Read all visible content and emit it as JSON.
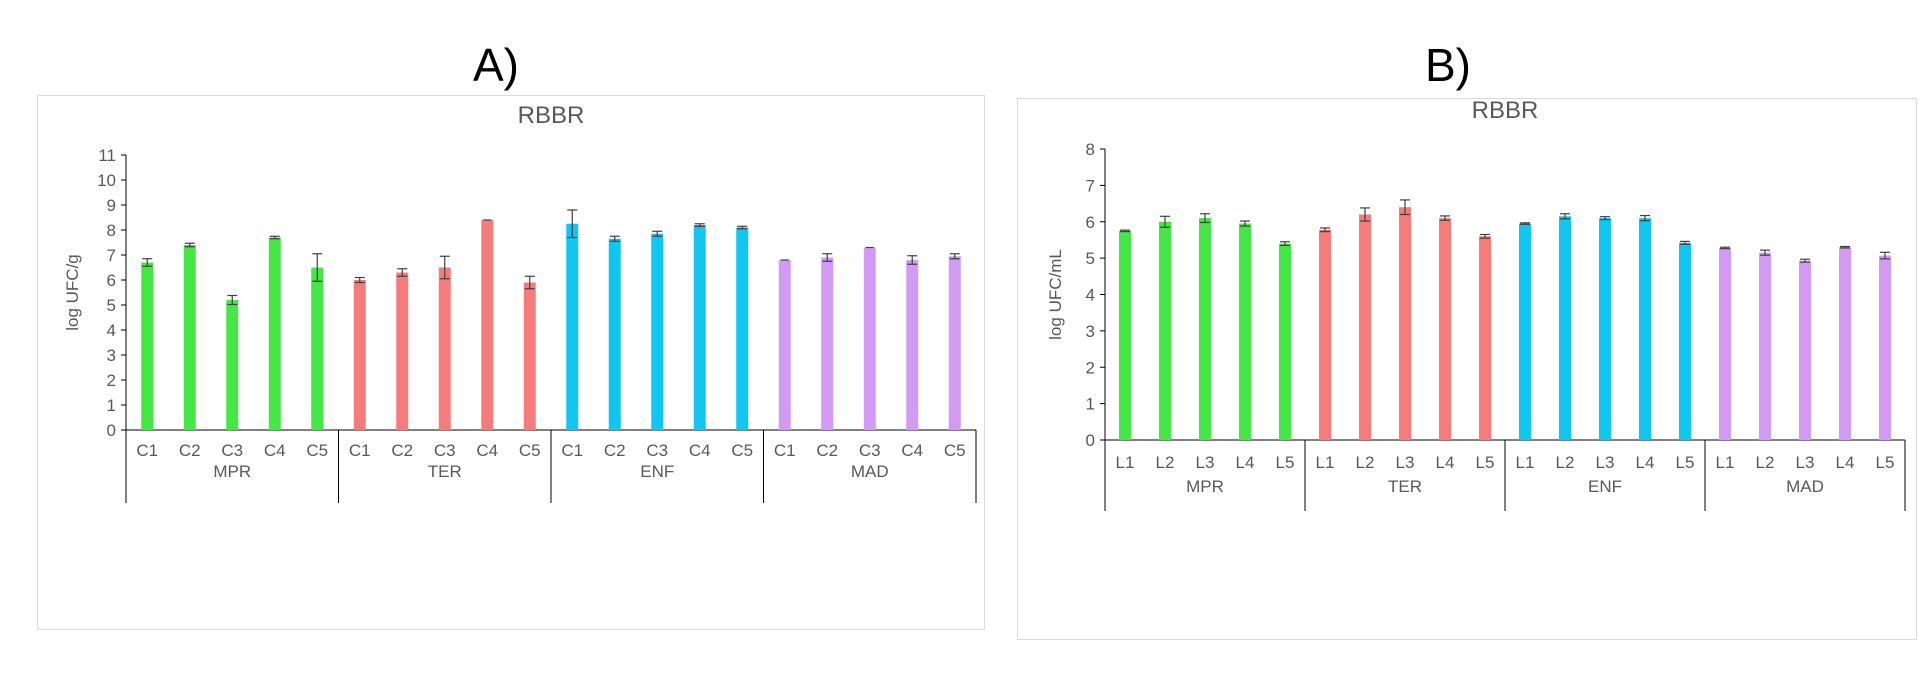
{
  "panels": {
    "a_label": "A)",
    "b_label": "B)"
  },
  "colors": {
    "MPR": "#44e745",
    "TER": "#f67b7b",
    "ENF": "#12c6f2",
    "MAD": "#d29af2",
    "error_bar": "#404040",
    "axis": "#000000",
    "text": "#595959"
  },
  "chart_data": [
    {
      "type": "bar",
      "title": "RBBR",
      "ylabel": "log UFC/g",
      "xlabel": "",
      "ylim": [
        0,
        11
      ],
      "yticks": [
        "0",
        "1",
        "2",
        "3",
        "4",
        "5",
        "6",
        "7",
        "8",
        "9",
        "10",
        "11"
      ],
      "groups": [
        "MPR",
        "TER",
        "ENF",
        "MAD"
      ],
      "categories": [
        "C1",
        "C2",
        "C3",
        "C4",
        "C5"
      ],
      "series": [
        {
          "name": "MPR",
          "values": [
            6.7,
            7.4,
            5.2,
            7.7,
            6.5
          ],
          "errors": [
            0.15,
            0.07,
            0.18,
            0.05,
            0.55
          ]
        },
        {
          "name": "TER",
          "values": [
            6.0,
            6.3,
            6.5,
            8.4,
            5.9
          ],
          "errors": [
            0.1,
            0.15,
            0.45,
            0.0,
            0.25
          ]
        },
        {
          "name": "ENF",
          "values": [
            8.25,
            7.65,
            7.85,
            8.2,
            8.1
          ],
          "errors": [
            0.55,
            0.1,
            0.1,
            0.05,
            0.05
          ]
        },
        {
          "name": "MAD",
          "values": [
            6.8,
            6.9,
            7.3,
            6.8,
            6.95
          ],
          "errors": [
            0.0,
            0.15,
            0.0,
            0.17,
            0.1
          ]
        }
      ]
    },
    {
      "type": "bar",
      "title": "RBBR",
      "ylabel": "log UFC/mL",
      "xlabel": "",
      "ylim": [
        0,
        8
      ],
      "yticks": [
        "0",
        "1",
        "2",
        "3",
        "4",
        "5",
        "6",
        "7",
        "8"
      ],
      "groups": [
        "MPR",
        "TER",
        "ENF",
        "MAD"
      ],
      "categories": [
        "L1",
        "L2",
        "L3",
        "L4",
        "L5"
      ],
      "series": [
        {
          "name": "MPR",
          "values": [
            5.75,
            6.0,
            6.1,
            5.95,
            5.4
          ],
          "errors": [
            0.02,
            0.15,
            0.12,
            0.07,
            0.05
          ]
        },
        {
          "name": "TER",
          "values": [
            5.78,
            6.2,
            6.4,
            6.1,
            5.6
          ],
          "errors": [
            0.05,
            0.18,
            0.2,
            0.06,
            0.05
          ]
        },
        {
          "name": "ENF",
          "values": [
            5.95,
            6.15,
            6.1,
            6.1,
            5.42
          ],
          "errors": [
            0.02,
            0.07,
            0.04,
            0.07,
            0.04
          ]
        },
        {
          "name": "MAD",
          "values": [
            5.28,
            5.15,
            4.93,
            5.3,
            5.07
          ],
          "errors": [
            0.02,
            0.07,
            0.04,
            0.02,
            0.09
          ]
        }
      ]
    }
  ]
}
